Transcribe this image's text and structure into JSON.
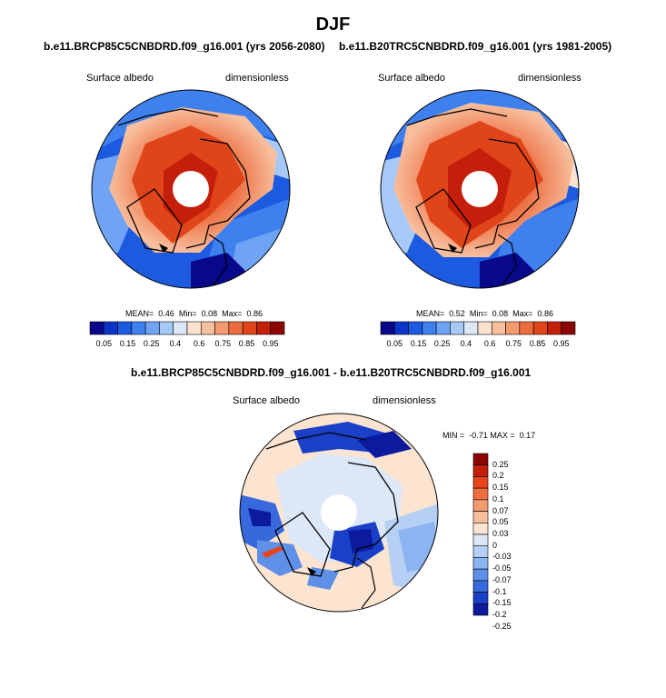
{
  "title": "DJF",
  "panels": [
    {
      "title": "b.e11.BRCP85C5CNBDRD.f09_g16.001 (yrs 2056-2080)",
      "variable": "Surface albedo",
      "units": "dimensionless",
      "stats": {
        "mean_label": "MEAN=",
        "mean": "0.46",
        "min_label": "Min=",
        "min": "0.08",
        "max_label": "Max=",
        "max": "0.86"
      }
    },
    {
      "title": "b.e11.B20TRC5CNBDRD.f09_g16.001 (yrs 1981-2005)",
      "variable": "Surface albedo",
      "units": "dimensionless",
      "stats": {
        "mean_label": "MEAN=",
        "mean": "0.52",
        "min_label": "Min=",
        "min": "0.08",
        "max_label": "Max=",
        "max": "0.86"
      }
    },
    {
      "title": "b.e11.BRCP85C5CNBDRD.f09_g16.001 - b.e11.B20TRC5CNBDRD.f09_g16.001",
      "variable": "Surface albedo",
      "units": "dimensionless",
      "stats": {
        "min_label": "MIN =",
        "min": "-0.71",
        "max_label": "MAX =",
        "max": "0.17"
      }
    }
  ],
  "albedo_colorbar": {
    "colors": [
      "#08088a",
      "#0c35c8",
      "#1c5ae0",
      "#3f80ef",
      "#6ea3f5",
      "#a7c9f7",
      "#dce8f8",
      "#fbe2cf",
      "#f8bf9e",
      "#f39a6f",
      "#ec6c3e",
      "#e04419",
      "#c41f0a",
      "#8c0505"
    ],
    "labels": [
      "0.05",
      "0.15",
      "0.25",
      "0.4",
      "0.6",
      "0.75",
      "0.85",
      "0.95"
    ]
  },
  "diff_colorbar": {
    "colors": [
      "#8c0505",
      "#c41f0a",
      "#e8451a",
      "#f06e3e",
      "#f39b70",
      "#f8bf9e",
      "#fce4d0",
      "#dce8f8",
      "#b6d0f5",
      "#8bb4f0",
      "#5f90e8",
      "#3768dc",
      "#1a40c8",
      "#0c1a9e"
    ],
    "labels": [
      "0.25",
      "0.2",
      "0.15",
      "0.1",
      "0.07",
      "0.05",
      "0.03",
      "0",
      "-0.03",
      "-0.05",
      "-0.07",
      "-0.1",
      "-0.15",
      "-0.2",
      "-0.25"
    ]
  }
}
